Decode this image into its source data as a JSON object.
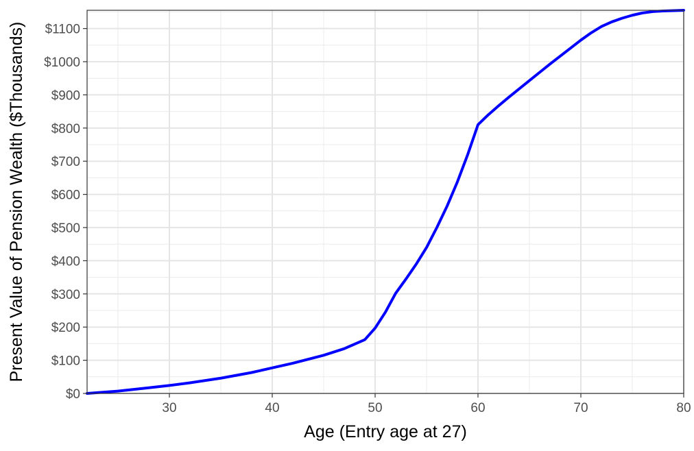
{
  "chart_data": {
    "type": "line",
    "title": "",
    "xlabel": "Age (Entry age at 27)",
    "ylabel": "Present Value of Pension Wealth ($Thousands)",
    "xlim": [
      22,
      80
    ],
    "ylim": [
      0,
      1155
    ],
    "grid": true,
    "x_ticks": [
      30,
      40,
      50,
      60,
      70,
      80
    ],
    "x_tick_labels": [
      "30",
      "40",
      "50",
      "60",
      "70",
      "80"
    ],
    "y_ticks": [
      0,
      100,
      200,
      300,
      400,
      500,
      600,
      700,
      800,
      900,
      1000,
      1100
    ],
    "y_tick_labels": [
      "$0",
      "$100",
      "$200",
      "$300",
      "$400",
      "$500",
      "$600",
      "$700",
      "$800",
      "$900",
      "$1000",
      "$1100"
    ],
    "series": [
      {
        "color": "#0000ff",
        "x": [
          22,
          25,
          28,
          30,
          32,
          35,
          38,
          40,
          42,
          45,
          47,
          49,
          50,
          51,
          52,
          53,
          54,
          55,
          56,
          57,
          58,
          59,
          60,
          61,
          62,
          63,
          64,
          65,
          66,
          67,
          68,
          69,
          70,
          71,
          72,
          73,
          74,
          75,
          76,
          77,
          78,
          79,
          80
        ],
        "y": [
          0,
          7,
          17,
          24,
          32,
          46,
          63,
          77,
          91,
          115,
          135,
          162,
          197,
          245,
          302,
          345,
          390,
          440,
          500,
          565,
          638,
          720,
          810,
          840,
          867,
          893,
          918,
          943,
          968,
          993,
          1017,
          1041,
          1065,
          1087,
          1106,
          1120,
          1131,
          1140,
          1147,
          1151,
          1153,
          1154,
          1155
        ]
      }
    ]
  }
}
